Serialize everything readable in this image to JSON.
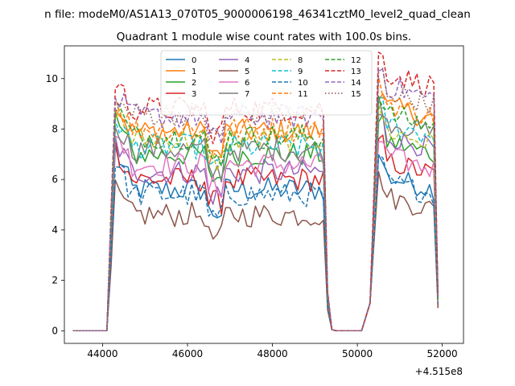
{
  "figure": {
    "suptitle": "n file: modeM0/AS1A13_070T05_9000006198_46341cztM0_level2_quad_clean",
    "offset_label": "+4.515e8"
  },
  "chart_data": {
    "type": "line",
    "title": "Quadrant 1 module wise count rates with 100.0s bins.",
    "xlabel": "",
    "ylabel": "",
    "x_offset": 451500000,
    "xlim": [
      43100,
      52500
    ],
    "ylim": [
      -0.5,
      11.3
    ],
    "x_ticks": [
      44000,
      46000,
      48000,
      50000,
      52000
    ],
    "y_ticks": [
      0,
      2,
      4,
      6,
      8,
      10
    ],
    "grid": false,
    "legend": {
      "placement": "top-center",
      "ncol": 4
    },
    "segments": [
      {
        "x_start": 44300,
        "x_end": 49200,
        "step": 100
      },
      {
        "x_start": 50500,
        "x_end": 51800,
        "step": 100
      }
    ],
    "series": [
      {
        "name": "0",
        "color": "#1f77b4",
        "dash": "solid",
        "level1": 5.6,
        "peak1": 7.2,
        "level2": 6.2,
        "end": 1.2
      },
      {
        "name": "1",
        "color": "#ff7f0e",
        "dash": "solid",
        "level1": 7.9,
        "peak1": 9.0,
        "level2": 9.0,
        "end": 1.3
      },
      {
        "name": "2",
        "color": "#2ca02c",
        "dash": "solid",
        "level1": 7.0,
        "peak1": 8.5,
        "level2": 7.6,
        "end": 1.1
      },
      {
        "name": "3",
        "color": "#d62728",
        "dash": "solid",
        "level1": 6.0,
        "peak1": 7.3,
        "level2": 6.8,
        "end": 1.0
      },
      {
        "name": "4",
        "color": "#9467bd",
        "dash": "solid",
        "level1": 6.3,
        "peak1": 7.5,
        "level2": 7.8,
        "end": 1.1
      },
      {
        "name": "5",
        "color": "#8c564b",
        "dash": "solid",
        "level1": 4.6,
        "peak1": 5.5,
        "level2": 5.4,
        "end": 0.9
      },
      {
        "name": "6",
        "color": "#e377c2",
        "dash": "solid",
        "level1": 6.6,
        "peak1": 8.0,
        "level2": 7.0,
        "end": 1.1
      },
      {
        "name": "7",
        "color": "#7f7f7f",
        "dash": "solid",
        "level1": 7.2,
        "peak1": 8.3,
        "level2": 8.4,
        "end": 1.2
      },
      {
        "name": "8",
        "color": "#bcbd22",
        "dash": "dashed",
        "level1": 7.6,
        "peak1": 8.8,
        "level2": 8.0,
        "end": 1.2
      },
      {
        "name": "9",
        "color": "#17becf",
        "dash": "dashed",
        "level1": 7.3,
        "peak1": 8.5,
        "level2": 8.3,
        "end": 1.2
      },
      {
        "name": "10",
        "color": "#1f77b4",
        "dash": "dashed",
        "level1": 5.4,
        "peak1": 6.8,
        "level2": 6.0,
        "end": 1.1
      },
      {
        "name": "11",
        "color": "#ff7f0e",
        "dash": "dashed",
        "level1": 8.0,
        "peak1": 9.2,
        "level2": 9.1,
        "end": 1.3
      },
      {
        "name": "12",
        "color": "#2ca02c",
        "dash": "dashed",
        "level1": 7.7,
        "peak1": 9.0,
        "level2": 8.7,
        "end": 1.2
      },
      {
        "name": "13",
        "color": "#d62728",
        "dash": "dashed",
        "level1": 8.8,
        "peak1": 9.9,
        "level2": 10.3,
        "end": 1.4
      },
      {
        "name": "14",
        "color": "#9467bd",
        "dash": "dashed",
        "level1": 8.5,
        "peak1": 9.3,
        "level2": 9.8,
        "end": 1.3
      },
      {
        "name": "15",
        "color": "#8c564b",
        "dash": "dotted",
        "level1": 8.6,
        "peak1": 9.0,
        "level2": 9.6,
        "end": 1.3
      }
    ]
  }
}
